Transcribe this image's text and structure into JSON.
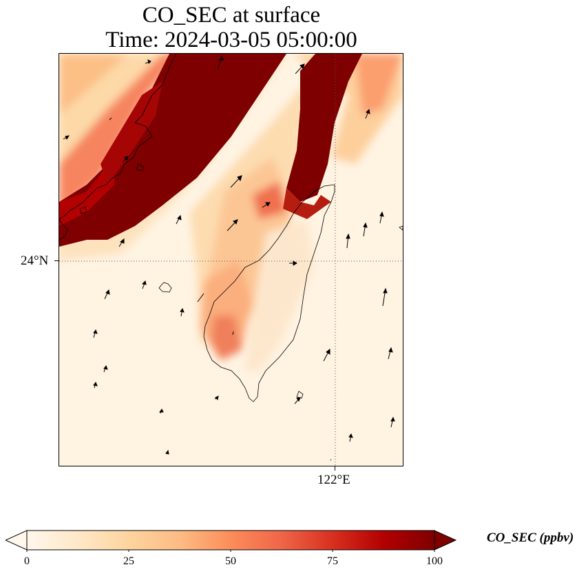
{
  "title": {
    "line1": "CO_SEC at surface",
    "line2": "Time: 2024-03-05 05:00:00"
  },
  "map": {
    "lat_gridline_label": "24°N",
    "lon_gridline_label": "122°E",
    "gridline_style": "dotted",
    "coastline_color": "#000000",
    "overlay": "wind vectors (arrows)"
  },
  "colorbar": {
    "label": "CO_SEC (ppbv)",
    "ticks": [
      "0",
      "25",
      "50",
      "75",
      "100"
    ],
    "min": 0,
    "max": 100,
    "colormap": "OrRd",
    "extend": "both",
    "colors": [
      "#fff7ec",
      "#fee8c8",
      "#fdd49e",
      "#fdbb84",
      "#fc8d59",
      "#ef6548",
      "#d7301f",
      "#b30000",
      "#7f0000"
    ]
  },
  "chart_data": {
    "type": "heatmap",
    "title": "CO_SEC at surface",
    "subtitle": "Time: 2024-03-05 05:00:00",
    "value_range": [
      0,
      100
    ],
    "unit": "ppbv",
    "regions": [
      {
        "area": "northwest Taiwan Strait / Fujian coast band",
        "value": 100
      },
      {
        "area": "north of Taiwan band",
        "value": 100
      },
      {
        "area": "western Taiwan plains",
        "value": 40
      },
      {
        "area": "northern Taiwan",
        "value": 70
      },
      {
        "area": "open ocean south and east",
        "value": 3
      }
    ]
  }
}
